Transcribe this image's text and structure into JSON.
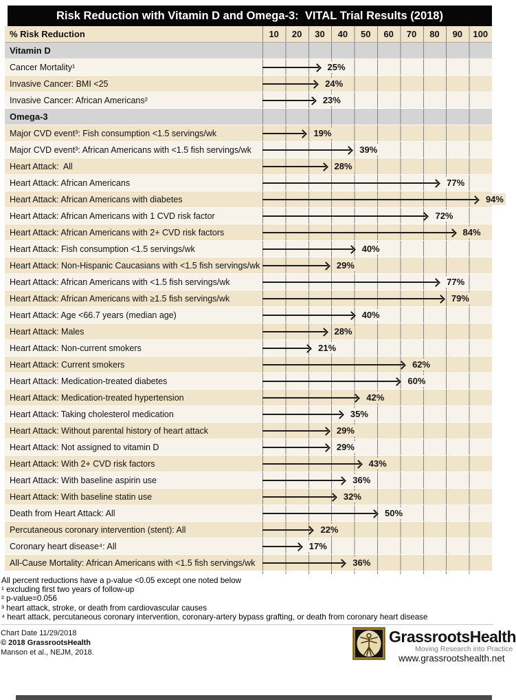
{
  "title": "Risk Reduction with Vitamin D and Omega-3:  VITAL Trial Results (2018)",
  "colors": {
    "title_bar": "#070707",
    "header_bg": "#f0e5cb",
    "row_light": "#f7f3ea",
    "row_tan": "#f0e5cb",
    "section_gray": "#d4d4d4",
    "gridline": "#828282",
    "arrow": "#1b1b1b",
    "bottom_bar": "#4b4b4b",
    "logo_gold": "#a8842e"
  },
  "chart_data": {
    "type": "bar",
    "title": "Risk Reduction with Vitamin D and Omega-3:  VITAL Trial Results (2018)",
    "axis_label": "% Risk Reduction",
    "x_ticks": [
      10,
      20,
      30,
      40,
      50,
      60,
      70,
      80,
      90,
      100
    ],
    "x_range": [
      0,
      100
    ],
    "value_suffix": "%",
    "grid": true,
    "sections": [
      {
        "name": "Vitamin D",
        "rows": [
          {
            "label": "Cancer Mortality¹",
            "value": 25
          },
          {
            "label": "Invasive Cancer: BMI <25",
            "value": 24
          },
          {
            "label": "Invasive Cancer: African Americans²",
            "value": 23
          }
        ]
      },
      {
        "name": "Omega-3",
        "rows": [
          {
            "label": "Major CVD event³: Fish consumption <1.5 servings/wk",
            "value": 19
          },
          {
            "label": "Major CVD event³: African Americans with <1.5 fish servings/wk",
            "value": 39
          },
          {
            "label": "Heart Attack:  All",
            "value": 28
          },
          {
            "label": "Heart Attack: African Americans",
            "value": 77
          },
          {
            "label": "Heart Attack: African Americans with diabetes",
            "value": 94
          },
          {
            "label": "Heart Attack: African Americans with 1 CVD risk factor",
            "value": 72
          },
          {
            "label": "Heart Attack: African Americans with 2+ CVD risk factors",
            "value": 84
          },
          {
            "label": "Heart Attack: Fish consumption <1.5 servings/wk",
            "value": 40
          },
          {
            "label": "Heart Attack: Non-Hispanic Caucasians with <1.5 fish servings/wk",
            "value": 29
          },
          {
            "label": "Heart Attack: African Americans with <1.5 fish servings/wk",
            "value": 77
          },
          {
            "label": "Heart Attack: African Americans with ≥1.5 fish servings/wk",
            "value": 79
          },
          {
            "label": "Heart Attack: Age <66.7 years (median age)",
            "value": 40
          },
          {
            "label": "Heart Attack: Males",
            "value": 28
          },
          {
            "label": "Heart Attack: Non-current smokers",
            "value": 21
          },
          {
            "label": "Heart Attack: Current smokers",
            "value": 62
          },
          {
            "label": "Heart Attack: Medication-treated diabetes",
            "value": 60
          },
          {
            "label": "Heart Attack: Medication-treated hypertension",
            "value": 42
          },
          {
            "label": "Heart Attack: Taking cholesterol medication",
            "value": 35
          },
          {
            "label": "Heart Attack: Without parental history of heart attack",
            "value": 29
          },
          {
            "label": "Heart Attack: Not assigned to vitamin D",
            "value": 29
          },
          {
            "label": "Heart Attack: With 2+ CVD risk factors",
            "value": 43
          },
          {
            "label": "Heart Attack: With baseline aspirin use",
            "value": 36
          },
          {
            "label": "Heart Attack: With baseline statin use",
            "value": 32
          },
          {
            "label": "Death from Heart Attack: All",
            "value": 50
          },
          {
            "label": "Percutaneous coronary intervention (stent): All",
            "value": 22
          },
          {
            "label": "Coronary heart disease⁴: All",
            "value": 17
          },
          {
            "label": "All-Cause Mortality: African Americans with <1.5 fish servings/wk",
            "value": 36
          }
        ]
      }
    ]
  },
  "footnotes": [
    "All percent reductions have a p-value <0.05 except one noted below",
    "¹ excluding first two years of follow-up",
    "² p-value=0.056",
    "³ heart attack, stroke, or death from cardiovascular causes",
    "⁴ heart attack, percutaneous coronary intervention, coronary-artery bypass grafting, or death from coronary heart disease"
  ],
  "footer": {
    "chart_date": "Chart Date 11/29/2018",
    "copyright": "© 2018 GrassrootsHealth",
    "reference": "Manson et al., NEJM, 2018.",
    "brand": "GrassrootsHealth",
    "tagline": "Moving Research into Practice",
    "url": "www.grassrootshealth.net"
  }
}
